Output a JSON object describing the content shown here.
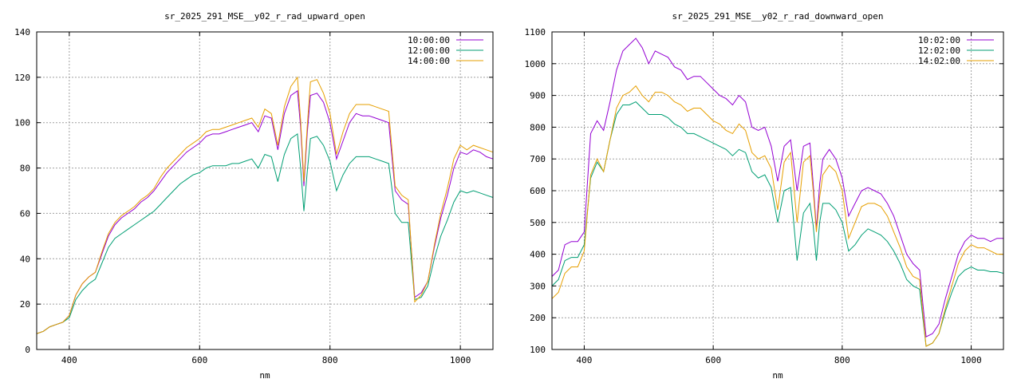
{
  "chart_data": [
    {
      "type": "line",
      "title": "sr_2025_291_MSE__y02_r_rad_upward_open",
      "xlabel": "nm",
      "ylabel": "",
      "xlim": [
        350,
        1050
      ],
      "ylim": [
        0,
        140
      ],
      "xticks": [
        400,
        600,
        800,
        1000
      ],
      "yticks": [
        0,
        20,
        40,
        60,
        80,
        100,
        120,
        140
      ],
      "grid": true,
      "legend_position": "top-right",
      "series": [
        {
          "name": "10:00:00",
          "color": "#9400d3",
          "x": [
            350,
            360,
            370,
            380,
            390,
            400,
            410,
            420,
            430,
            440,
            450,
            460,
            470,
            480,
            490,
            500,
            510,
            520,
            530,
            540,
            550,
            560,
            570,
            580,
            590,
            600,
            610,
            620,
            630,
            640,
            650,
            660,
            670,
            680,
            690,
            700,
            710,
            720,
            730,
            740,
            750,
            755,
            760,
            765,
            770,
            780,
            790,
            800,
            810,
            820,
            830,
            840,
            850,
            860,
            870,
            880,
            890,
            900,
            910,
            920,
            930,
            940,
            950,
            960,
            970,
            980,
            990,
            1000,
            1010,
            1020,
            1030,
            1040,
            1050
          ],
          "y": [
            7,
            8,
            10,
            11,
            12,
            15,
            24,
            29,
            32,
            34,
            42,
            50,
            55,
            58,
            60,
            62,
            65,
            67,
            70,
            74,
            78,
            81,
            84,
            87,
            89,
            91,
            94,
            95,
            95,
            96,
            97,
            98,
            99,
            100,
            96,
            103,
            102,
            88,
            104,
            112,
            114,
            98,
            72,
            95,
            112,
            113,
            109,
            100,
            84,
            92,
            100,
            104,
            103,
            103,
            102,
            101,
            100,
            70,
            66,
            64,
            23,
            25,
            30,
            45,
            58,
            68,
            80,
            87,
            86,
            88,
            87,
            85,
            84
          ]
        },
        {
          "name": "12:00:00",
          "color": "#009e73",
          "x": [
            350,
            360,
            370,
            380,
            390,
            400,
            410,
            420,
            430,
            440,
            450,
            460,
            470,
            480,
            490,
            500,
            510,
            520,
            530,
            540,
            550,
            560,
            570,
            580,
            590,
            600,
            610,
            620,
            630,
            640,
            650,
            660,
            670,
            680,
            690,
            700,
            710,
            720,
            730,
            740,
            750,
            755,
            760,
            765,
            770,
            780,
            790,
            800,
            810,
            820,
            830,
            840,
            850,
            860,
            870,
            880,
            890,
            900,
            910,
            920,
            930,
            940,
            950,
            960,
            970,
            980,
            990,
            1000,
            1010,
            1020,
            1030,
            1040,
            1050
          ],
          "y": [
            7,
            8,
            10,
            11,
            12,
            14,
            22,
            26,
            29,
            31,
            38,
            45,
            49,
            51,
            53,
            55,
            57,
            59,
            61,
            64,
            67,
            70,
            73,
            75,
            77,
            78,
            80,
            81,
            81,
            81,
            82,
            82,
            83,
            84,
            80,
            86,
            85,
            74,
            86,
            93,
            95,
            80,
            61,
            78,
            93,
            94,
            90,
            83,
            70,
            77,
            82,
            85,
            85,
            85,
            84,
            83,
            82,
            60,
            56,
            56,
            22,
            23,
            28,
            40,
            50,
            57,
            65,
            70,
            69,
            70,
            69,
            68,
            67
          ]
        },
        {
          "name": "14:00:00",
          "color": "#e69f00",
          "x": [
            350,
            360,
            370,
            380,
            390,
            400,
            410,
            420,
            430,
            440,
            450,
            460,
            470,
            480,
            490,
            500,
            510,
            520,
            530,
            540,
            550,
            560,
            570,
            580,
            590,
            600,
            610,
            620,
            630,
            640,
            650,
            660,
            670,
            680,
            690,
            700,
            710,
            720,
            730,
            740,
            750,
            755,
            760,
            765,
            770,
            780,
            790,
            800,
            810,
            820,
            830,
            840,
            850,
            860,
            870,
            880,
            890,
            900,
            910,
            920,
            930,
            940,
            950,
            960,
            970,
            980,
            990,
            1000,
            1010,
            1020,
            1030,
            1040,
            1050
          ],
          "y": [
            7,
            8,
            10,
            11,
            12,
            15,
            24,
            29,
            32,
            34,
            43,
            51,
            56,
            59,
            61,
            63,
            66,
            68,
            71,
            76,
            80,
            83,
            86,
            89,
            91,
            93,
            96,
            97,
            97,
            98,
            99,
            100,
            101,
            102,
            98,
            106,
            104,
            90,
            107,
            116,
            120,
            101,
            74,
            98,
            118,
            119,
            113,
            104,
            86,
            96,
            104,
            108,
            108,
            108,
            107,
            106,
            105,
            72,
            68,
            66,
            21,
            24,
            30,
            46,
            60,
            71,
            84,
            90,
            88,
            90,
            89,
            88,
            87
          ]
        }
      ]
    },
    {
      "type": "line",
      "title": "sr_2025_291_MSE__y02_r_rad_downward_open",
      "xlabel": "nm",
      "ylabel": "",
      "xlim": [
        350,
        1050
      ],
      "ylim": [
        100,
        1100
      ],
      "xticks": [
        400,
        600,
        800,
        1000
      ],
      "yticks": [
        100,
        200,
        300,
        400,
        500,
        600,
        700,
        800,
        900,
        1000,
        1100
      ],
      "grid": true,
      "legend_position": "top-right",
      "series": [
        {
          "name": "10:02:00",
          "color": "#9400d3",
          "x": [
            350,
            360,
            370,
            380,
            390,
            400,
            410,
            420,
            430,
            440,
            450,
            460,
            470,
            480,
            490,
            500,
            510,
            520,
            530,
            540,
            550,
            560,
            570,
            580,
            590,
            600,
            610,
            620,
            630,
            640,
            650,
            660,
            670,
            680,
            690,
            700,
            710,
            720,
            730,
            740,
            750,
            755,
            760,
            765,
            770,
            780,
            790,
            800,
            810,
            820,
            830,
            840,
            850,
            860,
            870,
            880,
            890,
            900,
            910,
            920,
            930,
            940,
            950,
            960,
            970,
            980,
            990,
            1000,
            1010,
            1020,
            1030,
            1040,
            1050
          ],
          "y": [
            330,
            350,
            430,
            440,
            440,
            470,
            780,
            820,
            790,
            880,
            980,
            1040,
            1060,
            1080,
            1050,
            1000,
            1040,
            1030,
            1020,
            990,
            980,
            950,
            960,
            960,
            940,
            920,
            900,
            890,
            870,
            900,
            880,
            800,
            790,
            800,
            740,
            630,
            740,
            760,
            600,
            740,
            750,
            620,
            480,
            620,
            700,
            730,
            700,
            640,
            520,
            560,
            600,
            610,
            600,
            590,
            560,
            520,
            460,
            400,
            370,
            350,
            140,
            150,
            180,
            260,
            330,
            400,
            440,
            460,
            450,
            450,
            440,
            450,
            450
          ]
        },
        {
          "name": "12:02:00",
          "color": "#009e73",
          "x": [
            350,
            360,
            370,
            380,
            390,
            400,
            410,
            420,
            430,
            440,
            450,
            460,
            470,
            480,
            490,
            500,
            510,
            520,
            530,
            540,
            550,
            560,
            570,
            580,
            590,
            600,
            610,
            620,
            630,
            640,
            650,
            660,
            670,
            680,
            690,
            700,
            710,
            720,
            730,
            740,
            750,
            755,
            760,
            765,
            770,
            780,
            790,
            800,
            810,
            820,
            830,
            840,
            850,
            860,
            870,
            880,
            890,
            900,
            910,
            920,
            930,
            940,
            950,
            960,
            970,
            980,
            990,
            1000,
            1010,
            1020,
            1030,
            1040,
            1050
          ],
          "y": [
            300,
            320,
            380,
            390,
            390,
            430,
            640,
            690,
            660,
            760,
            840,
            870,
            870,
            880,
            860,
            840,
            840,
            840,
            830,
            810,
            800,
            780,
            780,
            770,
            760,
            750,
            740,
            730,
            710,
            730,
            720,
            660,
            640,
            650,
            610,
            500,
            600,
            610,
            380,
            530,
            560,
            490,
            380,
            500,
            560,
            560,
            540,
            500,
            410,
            430,
            460,
            480,
            470,
            460,
            440,
            410,
            370,
            320,
            300,
            290,
            110,
            120,
            150,
            220,
            280,
            330,
            350,
            360,
            350,
            350,
            345,
            345,
            340
          ]
        },
        {
          "name": "14:02:00",
          "color": "#e69f00",
          "x": [
            350,
            360,
            370,
            380,
            390,
            400,
            410,
            420,
            430,
            440,
            450,
            460,
            470,
            480,
            490,
            500,
            510,
            520,
            530,
            540,
            550,
            560,
            570,
            580,
            590,
            600,
            610,
            620,
            630,
            640,
            650,
            660,
            670,
            680,
            690,
            700,
            710,
            720,
            730,
            740,
            750,
            755,
            760,
            765,
            770,
            780,
            790,
            800,
            810,
            820,
            830,
            840,
            850,
            860,
            870,
            880,
            890,
            900,
            910,
            920,
            930,
            940,
            950,
            960,
            970,
            980,
            990,
            1000,
            1010,
            1020,
            1030,
            1040,
            1050
          ],
          "y": [
            260,
            280,
            340,
            360,
            360,
            410,
            650,
            700,
            660,
            760,
            860,
            900,
            910,
            930,
            900,
            880,
            910,
            910,
            900,
            880,
            870,
            850,
            860,
            860,
            840,
            820,
            810,
            790,
            780,
            810,
            790,
            720,
            700,
            710,
            670,
            540,
            690,
            720,
            500,
            690,
            710,
            600,
            470,
            580,
            650,
            680,
            660,
            600,
            450,
            500,
            550,
            560,
            560,
            550,
            520,
            470,
            420,
            360,
            330,
            320,
            110,
            120,
            150,
            230,
            300,
            370,
            410,
            430,
            420,
            420,
            410,
            400,
            400
          ]
        }
      ]
    }
  ]
}
